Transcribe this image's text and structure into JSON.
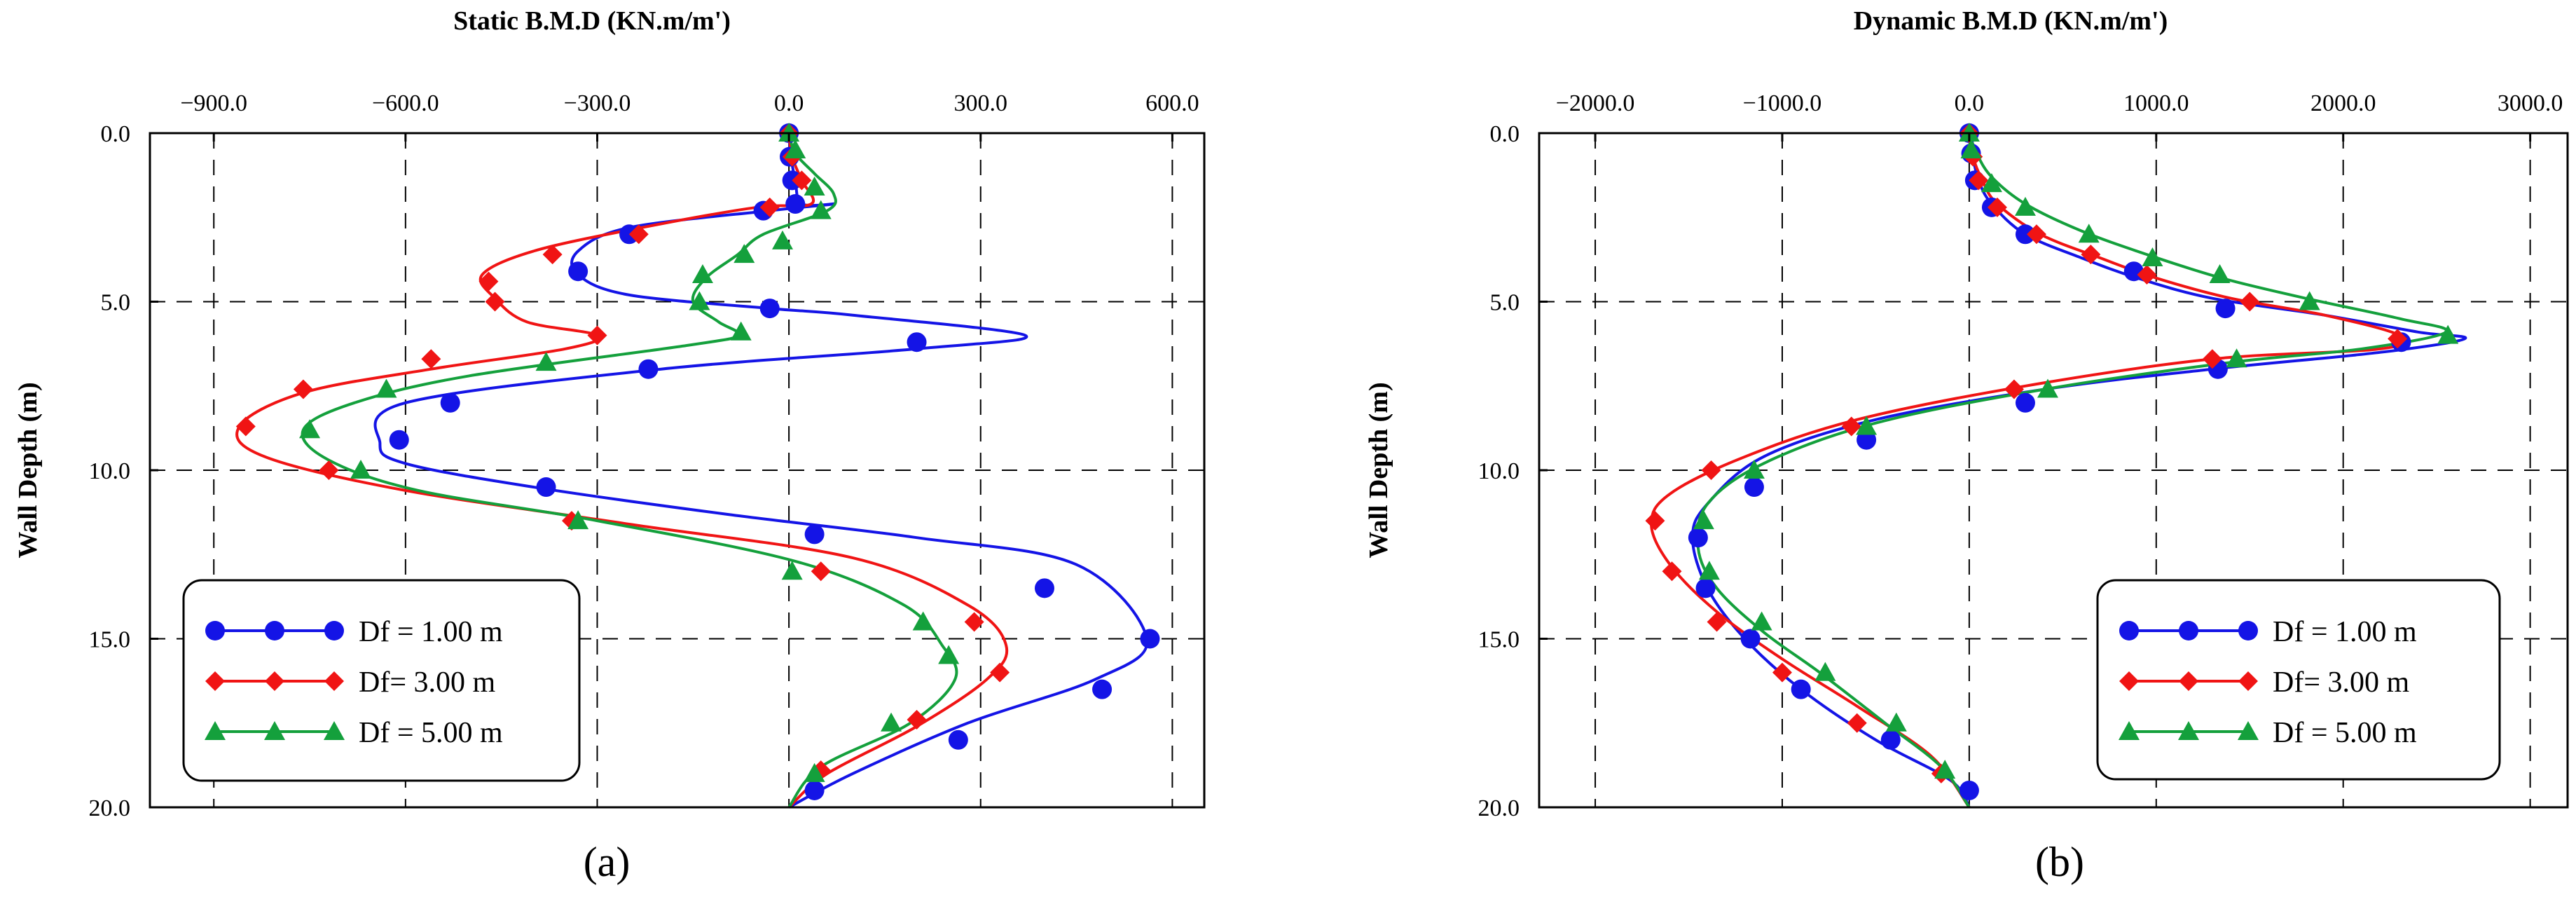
{
  "colors": {
    "blue": "#1414e6",
    "red": "#f01414",
    "green": "#14a03c"
  },
  "chart_data": [
    {
      "type": "line",
      "panel_label": "(a)",
      "title": "Static B.M.D (KN.m/m')",
      "xlabel": "Static B.M.D (KN.m/m')",
      "ylabel": "Wall Depth (m)",
      "xlim": [
        -1000,
        650
      ],
      "ylim": [
        0,
        20
      ],
      "y_inverted": true,
      "x_ticks": [
        -900,
        -600,
        -300,
        0,
        300,
        600
      ],
      "x_tick_labels": [
        "−900.0",
        "−600.0",
        "−300.0",
        "0.0",
        "300.0",
        "600.0"
      ],
      "y_ticks": [
        0,
        5,
        10,
        15,
        20
      ],
      "y_tick_labels": [
        "0.0",
        "5.0",
        "10.0",
        "15.0",
        "20.0"
      ],
      "legend": {
        "position": "bottom-left"
      },
      "series": [
        {
          "name": "Df = 1.00 m",
          "color": "#1414e6",
          "marker": "circle",
          "curve_x": [
            0,
            3,
            10,
            20,
            70,
            -30,
            -250,
            -330,
            -330,
            -250,
            -30,
            100,
            370,
            200,
            -200,
            -600,
            -640,
            -600,
            -400,
            -100,
            200,
            450,
            560,
            480,
            280,
            100,
            0
          ],
          "curve_y": [
            0,
            0.7,
            1.4,
            2.1,
            2.1,
            2.3,
            2.8,
            3.5,
            4.2,
            4.8,
            5.2,
            5.4,
            6.0,
            6.4,
            7.0,
            8.0,
            9.2,
            9.8,
            10.5,
            11.3,
            12.0,
            12.8,
            15.0,
            16.2,
            17.5,
            19.0,
            20.0
          ],
          "marker_x": [
            0,
            1,
            5,
            10,
            -40,
            -250,
            -330,
            -30,
            200,
            -220,
            -530,
            -610,
            -380,
            40,
            400,
            565,
            490,
            265,
            40
          ],
          "marker_y": [
            0,
            0.7,
            1.4,
            2.1,
            2.3,
            3.0,
            4.1,
            5.2,
            6.2,
            7.0,
            8.0,
            9.1,
            10.5,
            11.9,
            13.5,
            15.0,
            16.5,
            18.0,
            19.5
          ]
        },
        {
          "name": "Df= 3.00 m",
          "color": "#f01414",
          "marker": "diamond",
          "curve_x": [
            0,
            5,
            20,
            35,
            -50,
            -230,
            -400,
            -480,
            -460,
            -410,
            -300,
            -350,
            -560,
            -760,
            -860,
            -820,
            -600,
            -250,
            100,
            280,
            340,
            310,
            200,
            60,
            0
          ],
          "curve_y": [
            0,
            0.7,
            1.4,
            2.1,
            2.2,
            2.8,
            3.5,
            4.2,
            4.9,
            5.6,
            6.0,
            6.4,
            7.0,
            7.7,
            8.7,
            9.6,
            10.6,
            11.6,
            12.6,
            14.0,
            15.2,
            16.2,
            17.6,
            19.0,
            20.0
          ],
          "marker_x": [
            0,
            5,
            20,
            -30,
            -235,
            -370,
            -470,
            -460,
            -300,
            -560,
            -760,
            -850,
            -720,
            -340,
            50,
            290,
            330,
            200,
            50
          ],
          "marker_y": [
            0,
            0.7,
            1.4,
            2.2,
            3.0,
            3.6,
            4.4,
            5.0,
            6.0,
            6.7,
            7.6,
            8.7,
            10.0,
            11.5,
            13.0,
            14.5,
            16.0,
            17.4,
            18.9
          ]
        },
        {
          "name": "Df = 5.00 m",
          "color": "#14a03c",
          "marker": "triangle",
          "curve_x": [
            0,
            10,
            40,
            70,
            60,
            -40,
            -80,
            -130,
            -150,
            -110,
            -80,
            -160,
            -500,
            -680,
            -760,
            -720,
            -580,
            -300,
            10,
            180,
            240,
            260,
            190,
            50,
            0
          ],
          "curve_y": [
            0,
            0.6,
            1.2,
            1.8,
            2.3,
            3.0,
            3.6,
            4.3,
            5.0,
            5.6,
            6.0,
            6.3,
            7.2,
            8.0,
            8.8,
            9.7,
            10.6,
            11.5,
            12.7,
            14.0,
            15.2,
            16.2,
            17.5,
            18.8,
            20.0
          ],
          "marker_x": [
            0,
            10,
            40,
            50,
            -10,
            -70,
            -135,
            -140,
            -75,
            -380,
            -630,
            -750,
            -670,
            -330,
            5,
            210,
            250,
            160,
            40
          ],
          "marker_y": [
            0,
            0.5,
            1.6,
            2.3,
            3.2,
            3.6,
            4.2,
            5.0,
            5.9,
            6.8,
            7.6,
            8.8,
            10.0,
            11.5,
            13.0,
            14.5,
            15.5,
            17.5,
            19.0
          ]
        }
      ]
    },
    {
      "type": "line",
      "panel_label": "(b)",
      "title": "Dynamic B.M.D (KN.m/m')",
      "xlabel": "Dynamic B.M.D (KN.m/m')",
      "ylabel": "Wall Depth (m)",
      "xlim": [
        -2300,
        3200
      ],
      "ylim": [
        0,
        20
      ],
      "y_inverted": true,
      "x_ticks": [
        -2000,
        -1000,
        0,
        1000,
        2000,
        3000
      ],
      "x_tick_labels": [
        "−2000.0",
        "−1000.0",
        "0.0",
        "1000.0",
        "2000.0",
        "3000.0"
      ],
      "y_ticks": [
        0,
        5,
        10,
        15,
        20
      ],
      "y_tick_labels": [
        "0.0",
        "5.0",
        "10.0",
        "15.0",
        "20.0"
      ],
      "legend": {
        "position": "bottom-right"
      },
      "series": [
        {
          "name": "Df = 1.00 m",
          "color": "#1414e6",
          "marker": "circle",
          "curve_x": [
            0,
            20,
            50,
            120,
            300,
            600,
            900,
            1300,
            1900,
            2400,
            2650,
            2200,
            1300,
            400,
            -500,
            -1100,
            -1400,
            -1480,
            -1400,
            -1200,
            -900,
            -500,
            -100,
            0
          ],
          "curve_y": [
            0,
            0.7,
            1.4,
            2.1,
            3.0,
            3.7,
            4.3,
            4.9,
            5.4,
            5.9,
            6.1,
            6.5,
            7.0,
            7.6,
            8.5,
            9.6,
            11.0,
            12.0,
            13.5,
            15.0,
            16.5,
            18.0,
            19.2,
            20.0
          ],
          "marker_x": [
            0,
            10,
            30,
            120,
            300,
            880,
            1370,
            2310,
            1330,
            300,
            -550,
            -1150,
            -1450,
            -1410,
            -1170,
            -900,
            -420,
            0
          ],
          "marker_y": [
            0,
            0.6,
            1.4,
            2.2,
            3.0,
            4.1,
            5.2,
            6.2,
            7.0,
            8.0,
            9.1,
            10.5,
            12.0,
            13.5,
            15.0,
            16.5,
            18.0,
            19.5
          ]
        },
        {
          "name": "Df= 3.00 m",
          "color": "#f01414",
          "marker": "diamond",
          "curve_x": [
            0,
            20,
            70,
            150,
            380,
            700,
            1000,
            1400,
            1900,
            2300,
            2200,
            1300,
            300,
            -600,
            -1200,
            -1600,
            -1700,
            -1600,
            -1350,
            -1000,
            -600,
            -200,
            0
          ],
          "curve_y": [
            0,
            0.7,
            1.4,
            2.1,
            3.0,
            3.7,
            4.3,
            4.9,
            5.4,
            6.0,
            6.4,
            6.7,
            7.5,
            8.5,
            9.6,
            10.7,
            11.6,
            12.8,
            14.2,
            15.6,
            17.0,
            18.5,
            20.0
          ],
          "marker_x": [
            0,
            20,
            50,
            150,
            360,
            650,
            950,
            1500,
            2290,
            1300,
            240,
            -630,
            -1380,
            -1680,
            -1590,
            -1350,
            -1000,
            -600,
            -150
          ],
          "marker_y": [
            0,
            0.7,
            1.4,
            2.2,
            3.0,
            3.6,
            4.2,
            5.0,
            6.1,
            6.7,
            7.6,
            8.7,
            10.0,
            11.5,
            13.0,
            14.5,
            16.0,
            17.5,
            19.0
          ]
        },
        {
          "name": "Df = 5.00 m",
          "color": "#14a03c",
          "marker": "triangle",
          "curve_x": [
            0,
            40,
            120,
            300,
            600,
            950,
            1350,
            1800,
            2300,
            2550,
            2100,
            1400,
            400,
            -500,
            -1100,
            -1400,
            -1450,
            -1350,
            -1100,
            -800,
            -450,
            -150,
            0
          ],
          "curve_y": [
            0,
            0.6,
            1.3,
            2.1,
            2.9,
            3.6,
            4.3,
            4.9,
            5.5,
            5.9,
            6.4,
            6.8,
            7.6,
            8.6,
            9.8,
            11.0,
            12.3,
            13.5,
            14.8,
            16.0,
            17.5,
            18.8,
            20.0
          ],
          "marker_x": [
            0,
            10,
            120,
            300,
            640,
            980,
            1340,
            1820,
            2560,
            1430,
            420,
            -550,
            -1150,
            -1420,
            -1390,
            -1110,
            -770,
            -390,
            -130
          ],
          "marker_y": [
            0,
            0.5,
            1.5,
            2.2,
            3.0,
            3.7,
            4.2,
            5.0,
            6.0,
            6.7,
            7.6,
            8.7,
            10.0,
            11.5,
            13.0,
            14.5,
            16.0,
            17.5,
            18.9
          ]
        }
      ]
    }
  ]
}
